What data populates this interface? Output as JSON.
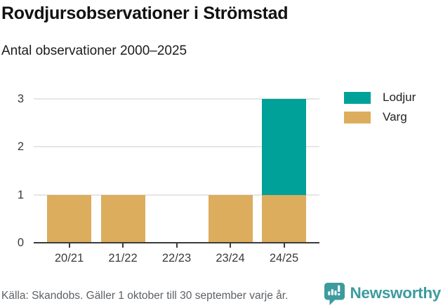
{
  "header": {
    "title": "Rovdjursobservationer i Strömstad",
    "subtitle": "Antal observationer 2000–2025"
  },
  "chart_data": {
    "type": "bar",
    "stacked": true,
    "title": "Rovdjursobservationer i Strömstad",
    "subtitle": "Antal observationer 2000–2025",
    "categories": [
      "20/21",
      "21/22",
      "22/23",
      "23/24",
      "24/25"
    ],
    "series": [
      {
        "name": "Lodjur",
        "color": "#00a199",
        "values": [
          0,
          0,
          0,
          0,
          2
        ]
      },
      {
        "name": "Varg",
        "color": "#dcad5d",
        "values": [
          1,
          1,
          0,
          1,
          1
        ]
      }
    ],
    "xlabel": "",
    "ylabel": "",
    "ylim": [
      0,
      3
    ],
    "yticks": [
      0,
      1,
      2,
      3
    ],
    "grid": true,
    "legend_position": "right"
  },
  "legend": {
    "items": [
      {
        "label": "Lodjur",
        "color": "#00a199"
      },
      {
        "label": "Varg",
        "color": "#dcad5d"
      }
    ]
  },
  "footer": {
    "source": "Källa: Skandobs. Gäller 1 oktober till 30 september varje år.",
    "brand": "Newsworthy",
    "brand_color": "#3d9b9e"
  },
  "colors": {
    "lodjur": "#00a199",
    "varg": "#dcad5d",
    "gridline": "#e6e6e6",
    "axis": "#3a3a3a",
    "source_text": "#5d6166"
  }
}
